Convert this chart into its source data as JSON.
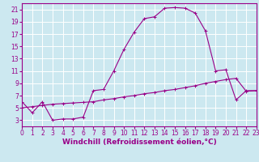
{
  "xlabel": "Windchill (Refroidissement éolien,°C)",
  "bg_color": "#cce8f0",
  "line_color": "#990088",
  "grid_color": "#ffffff",
  "line1_y": [
    6.0,
    4.2,
    6.0,
    3.0,
    3.2,
    3.2,
    3.5,
    7.8,
    8.0,
    11.0,
    14.5,
    17.3,
    19.5,
    19.8,
    21.2,
    21.3,
    21.2,
    20.4,
    17.5,
    11.0,
    11.2,
    6.3,
    7.8,
    7.8
  ],
  "line2_y": [
    5.0,
    5.2,
    5.4,
    5.6,
    5.7,
    5.8,
    5.9,
    6.0,
    6.3,
    6.5,
    6.8,
    7.0,
    7.3,
    7.5,
    7.8,
    8.0,
    8.3,
    8.6,
    9.0,
    9.3,
    9.6,
    9.8,
    7.7,
    7.8
  ],
  "x": [
    0,
    1,
    2,
    3,
    4,
    5,
    6,
    7,
    8,
    9,
    10,
    11,
    12,
    13,
    14,
    15,
    16,
    17,
    18,
    19,
    20,
    21,
    22,
    23
  ],
  "xlim": [
    0,
    23
  ],
  "ylim": [
    2,
    22
  ],
  "yticks": [
    3,
    5,
    7,
    9,
    11,
    13,
    15,
    17,
    19,
    21
  ],
  "xticks": [
    0,
    1,
    2,
    3,
    4,
    5,
    6,
    7,
    8,
    9,
    10,
    11,
    12,
    13,
    14,
    15,
    16,
    17,
    18,
    19,
    20,
    21,
    22,
    23
  ],
  "tick_fontsize": 5.5,
  "label_fontsize": 6.5,
  "figw": 3.2,
  "figh": 2.0,
  "dpi": 100
}
